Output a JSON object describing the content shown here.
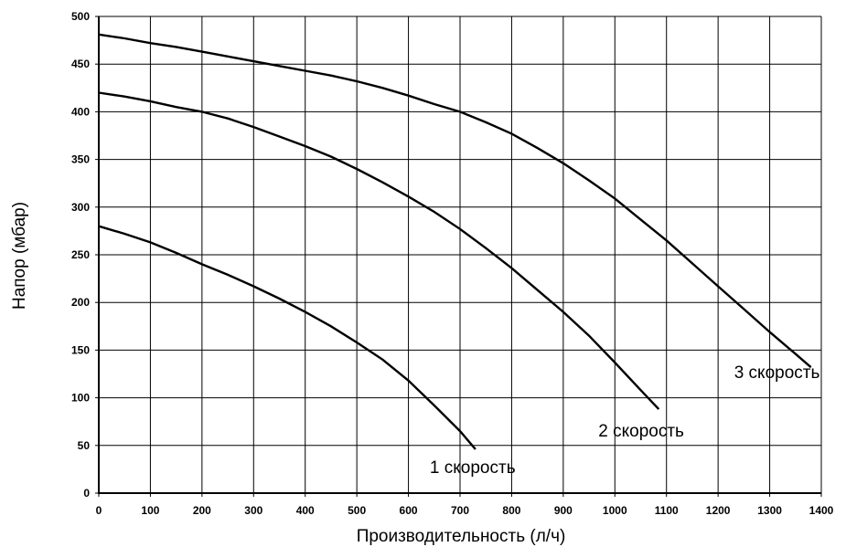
{
  "chart_data": {
    "type": "line",
    "title": "",
    "xlabel": "Производительность (л/ч)",
    "ylabel": "Напор (мбар)",
    "xlim": [
      0,
      1400
    ],
    "ylim": [
      0,
      500
    ],
    "x_ticks": [
      "0",
      "100",
      "200",
      "300",
      "400",
      "500",
      "600",
      "700",
      "800",
      "900",
      "1000",
      "1100",
      "1200",
      "1300",
      "1400"
    ],
    "y_ticks": [
      "0",
      "50",
      "100",
      "150",
      "200",
      "250",
      "300",
      "350",
      "400",
      "450",
      "500"
    ],
    "grid": true,
    "legend": "none",
    "series": [
      {
        "name": "1 скорость",
        "points": [
          [
            0,
            280
          ],
          [
            50,
            272
          ],
          [
            100,
            263
          ],
          [
            150,
            252
          ],
          [
            200,
            240
          ],
          [
            250,
            229
          ],
          [
            300,
            217
          ],
          [
            350,
            204
          ],
          [
            400,
            190
          ],
          [
            450,
            175
          ],
          [
            500,
            158
          ],
          [
            550,
            140
          ],
          [
            600,
            118
          ],
          [
            650,
            92
          ],
          [
            700,
            65
          ],
          [
            730,
            46
          ]
        ]
      },
      {
        "name": "2 скорость",
        "points": [
          [
            0,
            420
          ],
          [
            50,
            416
          ],
          [
            100,
            411
          ],
          [
            150,
            405
          ],
          [
            200,
            400
          ],
          [
            250,
            393
          ],
          [
            300,
            384
          ],
          [
            350,
            374
          ],
          [
            400,
            364
          ],
          [
            450,
            353
          ],
          [
            500,
            340
          ],
          [
            550,
            326
          ],
          [
            600,
            311
          ],
          [
            650,
            295
          ],
          [
            700,
            277
          ],
          [
            750,
            257
          ],
          [
            800,
            236
          ],
          [
            850,
            213
          ],
          [
            900,
            190
          ],
          [
            950,
            165
          ],
          [
            1000,
            137
          ],
          [
            1050,
            108
          ],
          [
            1085,
            88
          ]
        ]
      },
      {
        "name": "3 скорость",
        "points": [
          [
            0,
            481
          ],
          [
            50,
            477
          ],
          [
            100,
            472
          ],
          [
            150,
            468
          ],
          [
            200,
            463
          ],
          [
            250,
            458
          ],
          [
            300,
            453
          ],
          [
            350,
            448
          ],
          [
            400,
            443
          ],
          [
            450,
            438
          ],
          [
            500,
            432
          ],
          [
            550,
            425
          ],
          [
            600,
            417
          ],
          [
            650,
            408
          ],
          [
            700,
            400
          ],
          [
            750,
            389
          ],
          [
            800,
            377
          ],
          [
            850,
            362
          ],
          [
            900,
            346
          ],
          [
            950,
            328
          ],
          [
            1000,
            309
          ],
          [
            1050,
            287
          ],
          [
            1100,
            265
          ],
          [
            1150,
            241
          ],
          [
            1200,
            217
          ],
          [
            1250,
            193
          ],
          [
            1300,
            169
          ],
          [
            1350,
            146
          ],
          [
            1380,
            132
          ]
        ]
      }
    ]
  }
}
